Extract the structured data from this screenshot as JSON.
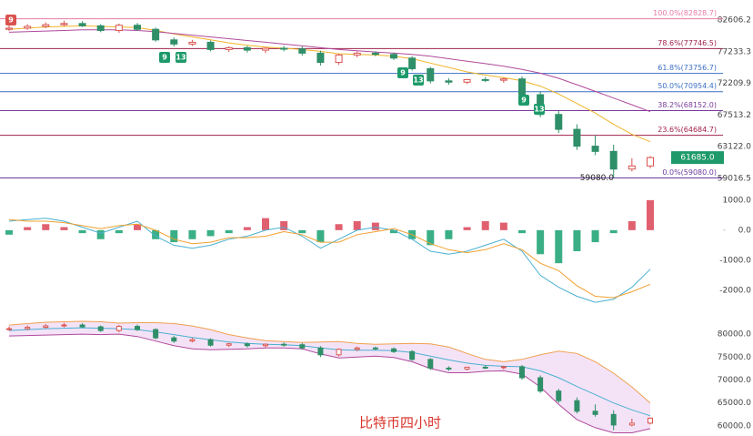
{
  "chart_data": [
    {
      "type": "candlestick",
      "log_scale": true,
      "ylim": [
        58000,
        86200
      ],
      "yticks": [
        82606.2,
        77233.3,
        72209.9,
        67513.2,
        {
          "value": 63122,
          "label": "63122.0"
        },
        59016.5
      ],
      "up_color": "#d9534f",
      "down_color": "#2f8f68",
      "open": [
        81000,
        81200,
        81500,
        81800,
        82000,
        81600,
        80800,
        81700,
        81000,
        79200,
        78500,
        78800,
        77600,
        77900,
        77500,
        77800,
        77700,
        77000,
        75500,
        76700,
        77000,
        76800,
        76200,
        74500,
        72600,
        72400,
        72800,
        72700,
        72900,
        70500,
        67600,
        65500,
        63200,
        62500,
        60200,
        60600
      ],
      "high": [
        81700,
        81900,
        82200,
        82500,
        82400,
        81900,
        82000,
        82100,
        81300,
        79600,
        79200,
        79100,
        78100,
        78200,
        78000,
        78200,
        78100,
        77400,
        76900,
        77300,
        77300,
        77100,
        76500,
        74800,
        73000,
        72900,
        73200,
        73100,
        73300,
        71000,
        68100,
        66200,
        64700,
        63400,
        61600,
        61900
      ],
      "low": [
        80700,
        80900,
        81200,
        81500,
        81400,
        80500,
        80400,
        80700,
        78900,
        78100,
        78200,
        77300,
        77200,
        77100,
        77000,
        77300,
        76600,
        75000,
        75100,
        76300,
        76500,
        75900,
        74200,
        72200,
        72000,
        72100,
        72400,
        72300,
        70100,
        67200,
        65000,
        62700,
        62000,
        59080,
        59900,
        60300
      ],
      "close": [
        81200,
        81500,
        81800,
        82000,
        81600,
        80800,
        81700,
        81000,
        79200,
        78500,
        78800,
        77600,
        77900,
        77500,
        77800,
        77700,
        77000,
        75500,
        76700,
        77000,
        76800,
        76200,
        74500,
        72600,
        72400,
        72800,
        72700,
        72900,
        70500,
        67600,
        65500,
        63200,
        62500,
        60200,
        60600,
        61685
      ],
      "lines": [
        {
          "color": "#f0b429",
          "values": [
            81000,
            81200,
            81400,
            81500,
            81600,
            81500,
            81400,
            81300,
            80800,
            80200,
            79700,
            79200,
            78700,
            78300,
            78000,
            77800,
            77600,
            77300,
            76900,
            76800,
            76700,
            76500,
            76100,
            75400,
            74700,
            74000,
            73500,
            73100,
            72600,
            71800,
            70600,
            69200,
            67800,
            66200,
            64800,
            63800
          ]
        },
        {
          "color": "#b04a9c",
          "values": [
            80500,
            80600,
            80700,
            80800,
            80900,
            80900,
            80900,
            80800,
            80600,
            80300,
            80000,
            79700,
            79400,
            79100,
            78800,
            78500,
            78200,
            77900,
            77600,
            77400,
            77200,
            77000,
            76800,
            76500,
            76100,
            75700,
            75300,
            74900,
            74400,
            73800,
            73000,
            72000,
            71000,
            70000,
            69000,
            68000
          ]
        }
      ],
      "fib_levels": [
        {
          "label": "100.0%(82828.7)",
          "value": 82828.7,
          "color": "#e87aa5"
        },
        {
          "label": "78.6%(77746.5)",
          "value": 77746.5,
          "color": "#a0224a"
        },
        {
          "label": "61.8%(73756.7)",
          "value": 73756.7,
          "color": "#3b6fc4"
        },
        {
          "label": "50.0%(70954.4)",
          "value": 70954.4,
          "color": "#3b6fc4"
        },
        {
          "label": "38.2%(68152.0)",
          "value": 68152.0,
          "color": "#7a3b9c"
        },
        {
          "label": "23.6%(64684.7)",
          "value": 64684.7,
          "color": "#a0224a"
        },
        {
          "label": "0.0%(59080.0)",
          "value": 59080.0,
          "color": "#6a3b9c"
        }
      ],
      "price_tag": {
        "value": 61685,
        "label": "61685.0",
        "color": "#1e9a6a"
      },
      "low_label": {
        "value": 59080,
        "label": "59080.0"
      },
      "td_labels": [
        {
          "text": "9",
          "color": "#d9534f"
        },
        {
          "text": "9",
          "color": "#1e9a6a"
        },
        {
          "text": "13",
          "color": "#1e9a6a"
        },
        {
          "text": "9",
          "color": "#1e9a6a"
        },
        {
          "text": "13",
          "color": "#1e9a6a"
        },
        {
          "text": "9",
          "color": "#1e9a6a"
        },
        {
          "text": "13",
          "color": "#1e9a6a"
        }
      ]
    },
    {
      "type": "macd",
      "ylim": [
        -2640,
        1450
      ],
      "yticks": [
        {
          "value": 1000,
          "label": "1000.0"
        },
        {
          "value": 0,
          "label": "0.0"
        },
        {
          "value": -1000,
          "label": "-1000.0"
        },
        {
          "value": -2000,
          "label": "-2000.0"
        }
      ],
      "pos_color": "#e06070",
      "neg_color": "#3aaf85",
      "histogram": [
        -150,
        100,
        200,
        100,
        -100,
        -300,
        -100,
        200,
        -300,
        -400,
        -300,
        -200,
        -100,
        100,
        400,
        300,
        -100,
        -400,
        200,
        300,
        250,
        -100,
        -300,
        -500,
        -300,
        100,
        300,
        250,
        -100,
        -800,
        -1100,
        -700,
        -400,
        -100,
        300,
        1000
      ],
      "lines": [
        {
          "color": "#4ab0d0",
          "values": [
            300,
            350,
            400,
            300,
            100,
            -100,
            100,
            300,
            -200,
            -500,
            -600,
            -500,
            -300,
            -200,
            0,
            100,
            -200,
            -600,
            -300,
            0,
            100,
            0,
            -300,
            -700,
            -800,
            -700,
            -500,
            -300,
            -700,
            -1500,
            -1900,
            -2200,
            -2400,
            -2300,
            -1900,
            -1300
          ]
        },
        {
          "color": "#f0a030",
          "values": [
            350,
            300,
            300,
            250,
            150,
            50,
            150,
            200,
            0,
            -300,
            -450,
            -400,
            -250,
            -250,
            -200,
            -50,
            -150,
            -400,
            -400,
            -150,
            -50,
            50,
            -150,
            -450,
            -650,
            -750,
            -650,
            -450,
            -650,
            -1100,
            -1350,
            -1850,
            -2200,
            -2250,
            -2050,
            -1800
          ]
        }
      ]
    },
    {
      "type": "bollinger",
      "ylim": [
        57800,
        83400
      ],
      "yticks": [
        {
          "value": 80000,
          "label": "80000.0"
        },
        {
          "value": 75000,
          "label": "75000.0"
        },
        {
          "value": 70000,
          "label": "70000.0"
        },
        {
          "value": 65000,
          "label": "65000.0"
        },
        {
          "value": 60000,
          "label": "60000.0"
        }
      ],
      "fill": "#f1dcf5",
      "bands": [
        {
          "color": "#f0a050",
          "values": [
            82000,
            82300,
            82600,
            82700,
            82800,
            82700,
            82400,
            82500,
            82500,
            82300,
            81800,
            81000,
            79900,
            79200,
            78600,
            78400,
            78200,
            78300,
            78400,
            78000,
            77800,
            77900,
            78000,
            77900,
            77200,
            75800,
            74500,
            74000,
            74500,
            75500,
            76300,
            75800,
            74000,
            71500,
            68500,
            65000
          ]
        },
        {
          "color": "#4ab0d0",
          "values": [
            80800,
            81000,
            81200,
            81300,
            81400,
            81300,
            81200,
            81000,
            80500,
            79900,
            79300,
            78800,
            78300,
            78000,
            77800,
            77700,
            77500,
            77000,
            76600,
            76500,
            76500,
            76400,
            76000,
            75200,
            74400,
            73700,
            73200,
            73000,
            72900,
            72000,
            70500,
            68600,
            66800,
            65000,
            63500,
            62200
          ]
        },
        {
          "color": "#b04a9c",
          "values": [
            79600,
            79700,
            79800,
            79900,
            80000,
            79900,
            80000,
            79500,
            78500,
            77500,
            76800,
            76600,
            76700,
            76800,
            77000,
            77000,
            76800,
            75700,
            74800,
            75000,
            75200,
            74900,
            74000,
            72500,
            71600,
            71600,
            71900,
            72000,
            71300,
            68500,
            64700,
            61400,
            59600,
            58500,
            58500,
            59400
          ]
        }
      ],
      "title": "比特币四小时",
      "title_color": "#d9342b"
    }
  ]
}
